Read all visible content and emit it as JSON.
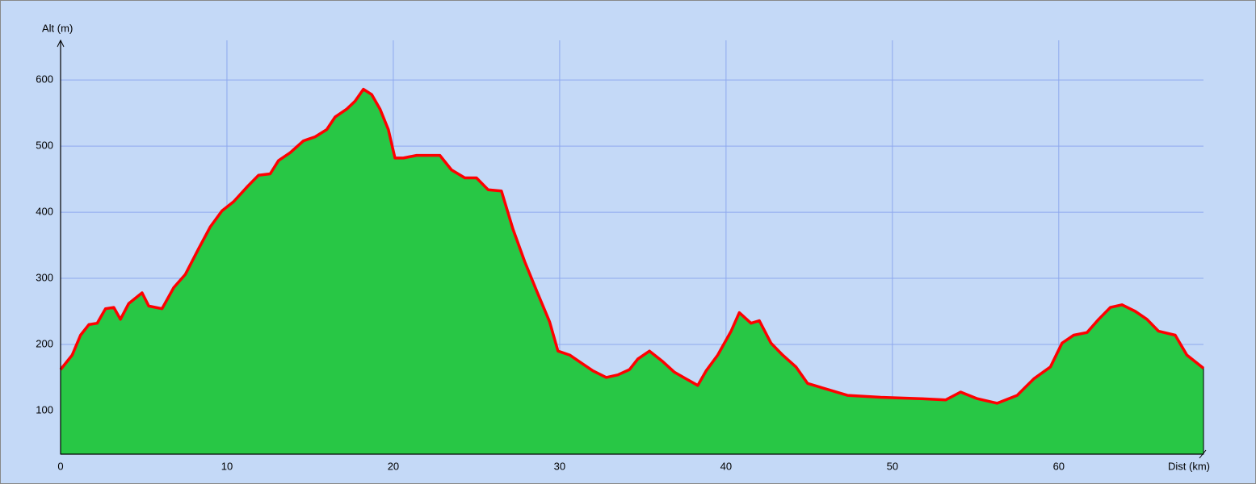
{
  "chart_data": {
    "type": "area",
    "y_label": "Alt (m)",
    "x_label": "Dist (km)",
    "xlim": [
      0,
      68.7
    ],
    "ylim": [
      34,
      660
    ],
    "xticks": [
      0,
      10,
      20,
      30,
      40,
      50,
      60
    ],
    "yticks": [
      100,
      200,
      300,
      400,
      500,
      600
    ],
    "grid": true,
    "background": "#c4d9f7",
    "grid_color": "#8ea9ee",
    "fill_color": "#28c745",
    "series": [
      {
        "name": "Altitude",
        "color": "#ff0000",
        "x": [
          0,
          0.7,
          1.2,
          1.7,
          2.2,
          2.7,
          3.2,
          3.6,
          4.1,
          4.9,
          5.3,
          6.1,
          6.8,
          7.5,
          8.3,
          9.0,
          9.7,
          10.4,
          11.2,
          11.9,
          12.6,
          13.1,
          13.8,
          14.6,
          15.3,
          16.0,
          16.5,
          17.2,
          17.7,
          18.2,
          18.7,
          19.2,
          19.7,
          20.1,
          20.6,
          21.4,
          22.1,
          22.8,
          23.5,
          24.3,
          25.0,
          25.7,
          26.5,
          27.2,
          27.9,
          28.6,
          29.4,
          29.9,
          30.6,
          31.3,
          32.0,
          32.8,
          33.5,
          34.2,
          34.7,
          35.4,
          36.2,
          36.9,
          37.6,
          38.3,
          38.8,
          39.5,
          40.3,
          40.8,
          41.5,
          42.0,
          42.7,
          43.4,
          44.2,
          44.9,
          47.3,
          49.3,
          51.7,
          53.2,
          54.1,
          55.1,
          56.3,
          57.5,
          58.5,
          59.5,
          60.2,
          60.9,
          61.7,
          62.4,
          63.1,
          63.8,
          64.6,
          65.3,
          66.0,
          67.0,
          67.7,
          68.7
        ],
        "values": [
          162,
          184,
          214,
          230,
          232,
          254,
          256,
          238,
          262,
          278,
          258,
          254,
          286,
          306,
          345,
          378,
          402,
          416,
          438,
          456,
          458,
          478,
          490,
          508,
          514,
          525,
          544,
          556,
          568,
          586,
          578,
          556,
          525,
          482,
          482,
          486,
          486,
          486,
          464,
          452,
          452,
          434,
          432,
          374,
          325,
          282,
          234,
          190,
          184,
          172,
          160,
          150,
          154,
          162,
          178,
          190,
          174,
          158,
          148,
          138,
          160,
          184,
          220,
          248,
          232,
          236,
          202,
          184,
          166,
          141,
          123,
          120,
          118,
          116,
          128,
          118,
          111,
          123,
          148,
          166,
          202,
          214,
          218,
          238,
          256,
          260,
          250,
          238,
          220,
          214,
          184,
          164
        ]
      }
    ]
  }
}
